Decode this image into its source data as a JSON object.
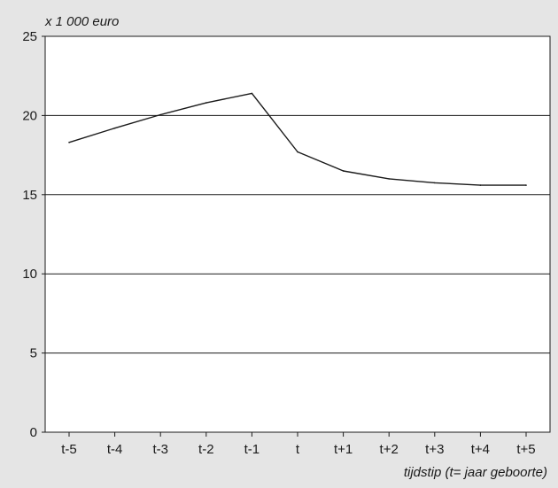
{
  "chart_data": {
    "type": "line",
    "ylabel": "x 1 000 euro",
    "xlabel": "tijdstip (t= jaar geboorte)",
    "categories": [
      "t-5",
      "t-4",
      "t-3",
      "t-2",
      "t-1",
      "t",
      "t+1",
      "t+2",
      "t+3",
      "t+4",
      "t+5"
    ],
    "y_ticks": [
      "0",
      "5",
      "10",
      "15",
      "20",
      "25"
    ],
    "ylim": [
      0,
      25
    ],
    "grid": true,
    "series": [
      {
        "values": [
          18.3,
          19.2,
          20.05,
          20.8,
          21.4,
          17.7,
          16.5,
          16.0,
          15.75,
          15.6,
          15.6
        ]
      }
    ],
    "colors": {
      "background": "#e5e5e5",
      "plot_area": "#ffffff",
      "line": "#1a1a1a",
      "grid": "#1a1a1a"
    }
  }
}
